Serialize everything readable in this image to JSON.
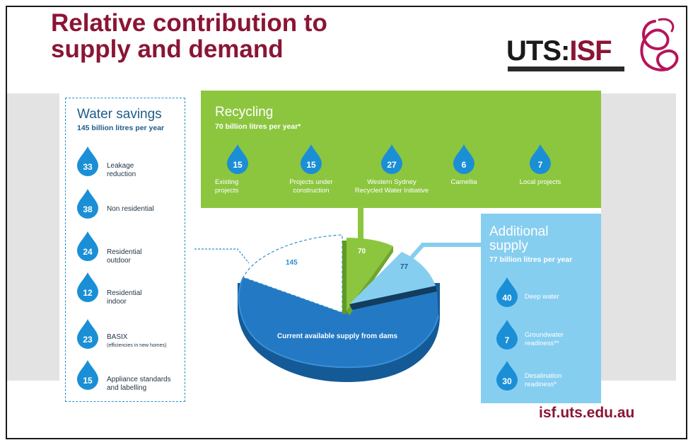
{
  "title": {
    "line1": "Relative contribution to",
    "line2": "supply and demand"
  },
  "logo": {
    "uts": "UTS:",
    "isf": "ISF"
  },
  "water_savings": {
    "title": "Water savings",
    "subtitle": "145 billion litres per year",
    "items": [
      {
        "value": "33",
        "label_line1": "Leakage",
        "label_line2": "reduction",
        "note": ""
      },
      {
        "value": "38",
        "label_line1": "Non residential",
        "label_line2": "",
        "note": ""
      },
      {
        "value": "24",
        "label_line1": "Residential",
        "label_line2": "outdoor",
        "note": ""
      },
      {
        "value": "12",
        "label_line1": "Residential",
        "label_line2": "indoor",
        "note": ""
      },
      {
        "value": "23",
        "label_line1": "BASIX",
        "label_line2": "",
        "note": "(efficiencies in new homes)"
      },
      {
        "value": "15",
        "label_line1": "Appliance standards",
        "label_line2": "and labelling",
        "note": ""
      }
    ]
  },
  "recycling": {
    "title": "Recycling",
    "subtitle": "70 billion litres per year*",
    "items": [
      {
        "value": "15",
        "label_line1": "Existing",
        "label_line2": "projects"
      },
      {
        "value": "15",
        "label_line1": "Projects under",
        "label_line2": "construction"
      },
      {
        "value": "27",
        "label_line1": "Western Sydney",
        "label_line2": "Recycled Water Initiative"
      },
      {
        "value": "6",
        "label_line1": "Camellia",
        "label_line2": ""
      },
      {
        "value": "7",
        "label_line1": "Local projects",
        "label_line2": ""
      }
    ]
  },
  "additional_supply": {
    "title_line1": "Additional",
    "title_line2": "supply",
    "subtitle": "77 billion litres per year",
    "items": [
      {
        "value": "40",
        "label_line1": "Deep water",
        "label_line2": ""
      },
      {
        "value": "7",
        "label_line1": "Groundwater",
        "label_line2": "readiness**"
      },
      {
        "value": "30",
        "label_line1": "Desalination",
        "label_line2": "readiness*"
      }
    ]
  },
  "pie": {
    "dams_label": "Current available supply from dams",
    "savings_value": "145",
    "recycling_value": "70",
    "additional_value": "77",
    "colors": {
      "dams": "#1b6fb8",
      "recycling": "#8cc63f",
      "additional": "#86cef0",
      "savings_outline": "#2a8fcc"
    }
  },
  "url": "isf.uts.edu.au"
}
